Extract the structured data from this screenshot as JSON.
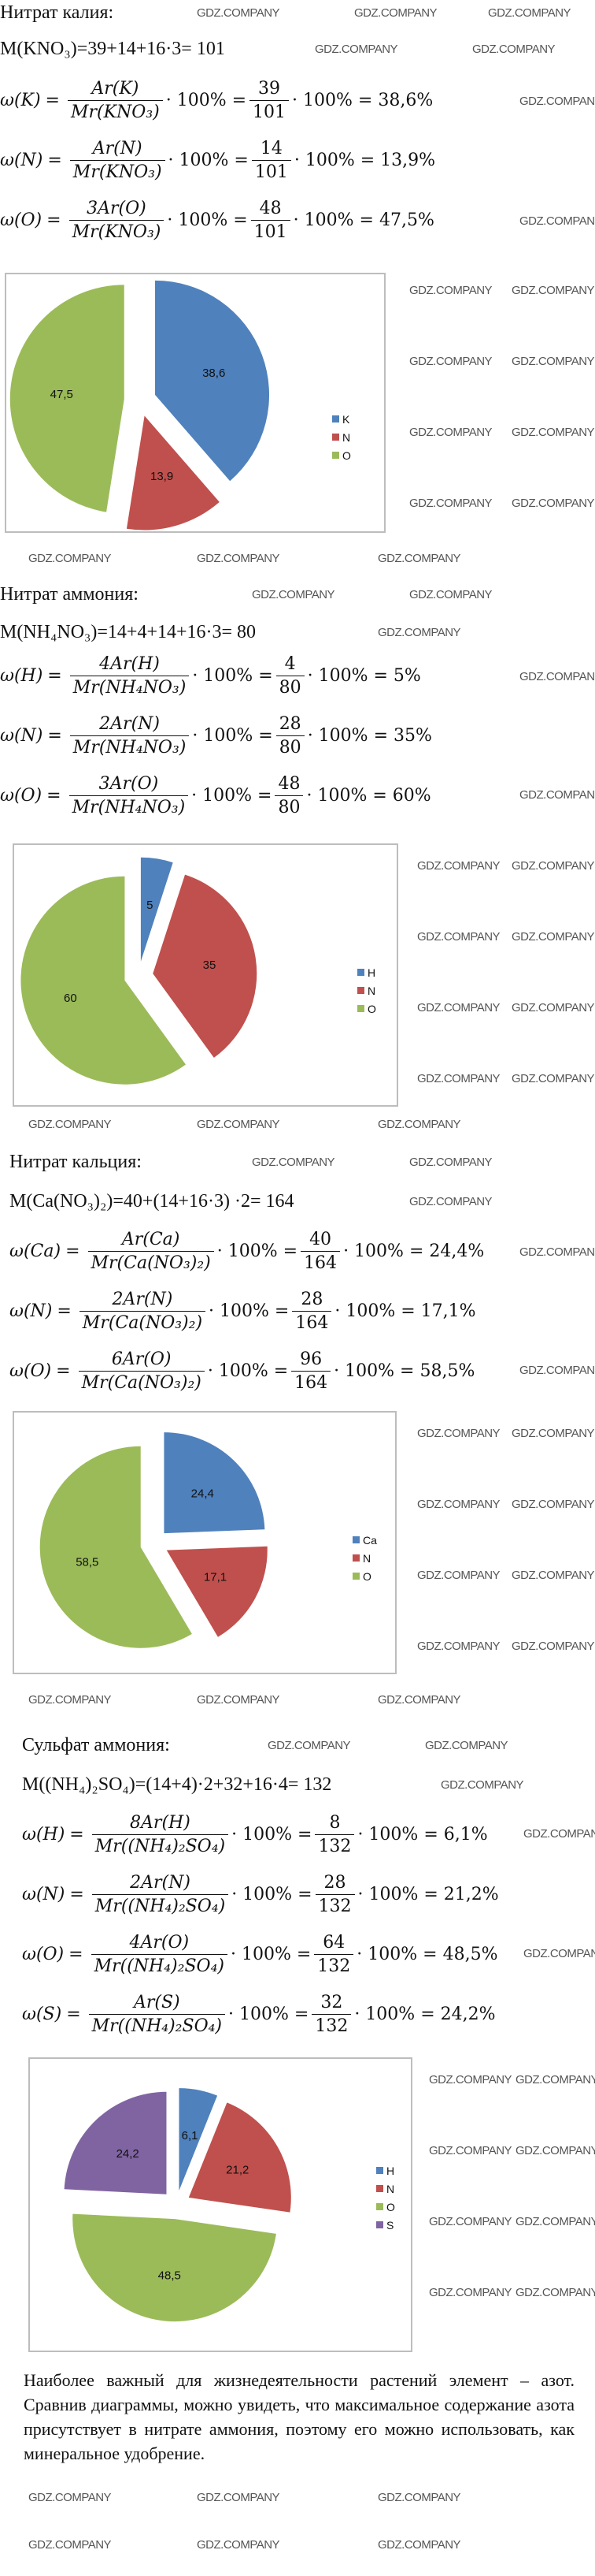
{
  "watermark": "GDZ.COMPANY",
  "colors": {
    "blue": "#4F81BD",
    "red": "#C0504D",
    "green": "#9BBB59",
    "purple": "#8064A2"
  },
  "sections": [
    {
      "title": "Нитрат  калия:",
      "molar": "M(KNO₃)=39+14+16·3= 101",
      "formulas": [
        {
          "lhs": "ω(K)",
          "num": "Ar(K)",
          "den": "Mr(KNO₃)",
          "mid": "· 100% =",
          "num2": "39",
          "den2": "101",
          "result": "· 100% = 38,6%"
        },
        {
          "lhs": "ω(N)",
          "num": "Ar(N)",
          "den": "Mr(KNO₃)",
          "mid": "· 100% =",
          "num2": "14",
          "den2": "101",
          "result": "· 100% = 13,9%"
        },
        {
          "lhs": "ω(O)",
          "num": "3Ar(O)",
          "den": "Mr(KNO₃)",
          "mid": "· 100% =",
          "num2": "48",
          "den2": "101",
          "result": "· 100% = 47,5%"
        }
      ]
    },
    {
      "title": "Нитрат  аммония:",
      "molar": "M(NH₄NO₃)=14+4+14+16·3= 80",
      "formulas": [
        {
          "lhs": "ω(H)",
          "num": "4Ar(H)",
          "den": "Mr(NH₄NO₃)",
          "mid": "· 100% =",
          "num2": "4",
          "den2": "80",
          "result": "· 100% = 5%"
        },
        {
          "lhs": "ω(N)",
          "num": "2Ar(N)",
          "den": "Mr(NH₄NO₃)",
          "mid": "· 100% =",
          "num2": "28",
          "den2": "80",
          "result": "· 100% = 35%"
        },
        {
          "lhs": "ω(O)",
          "num": "3Ar(O)",
          "den": "Mr(NH₄NO₃)",
          "mid": "· 100% =",
          "num2": "48",
          "den2": "80",
          "result": "· 100% = 60%"
        }
      ]
    },
    {
      "title": "Нитрат  кальция:",
      "molar": "M(Ca(NO₃)₂)=40+(14+16·3) ·2= 164",
      "formulas": [
        {
          "lhs": "ω(Ca)",
          "num": "Ar(Ca)",
          "den": "Mr(Ca(NO₃)₂)",
          "mid": "· 100% =",
          "num2": "40",
          "den2": "164",
          "result": "· 100% = 24,4%"
        },
        {
          "lhs": "ω(N)",
          "num": "2Ar(N)",
          "den": "Mr(Ca(NO₃)₂)",
          "mid": "· 100% =",
          "num2": "28",
          "den2": "164",
          "result": "· 100% = 17,1%"
        },
        {
          "lhs": "ω(O)",
          "num": "6Ar(O)",
          "den": "Mr(Ca(NO₃)₂)",
          "mid": "· 100% =",
          "num2": "96",
          "den2": "164",
          "result": "· 100% = 58,5%"
        }
      ]
    },
    {
      "title": "Сульфат  аммония:",
      "molar": "M((NH₄)₂SO₄)=(14+4)·2+32+16·4= 132",
      "formulas": [
        {
          "lhs": "ω(H)",
          "num": "8Ar(H)",
          "den": "Mr((NH₄)₂SO₄)",
          "mid": "· 100% =",
          "num2": "8",
          "den2": "132",
          "result": "· 100% = 6,1%"
        },
        {
          "lhs": "ω(N)",
          "num": "2Ar(N)",
          "den": "Mr((NH₄)₂SO₄)",
          "mid": "· 100% =",
          "num2": "28",
          "den2": "132",
          "result": "· 100% = 21,2%"
        },
        {
          "lhs": "ω(O)",
          "num": "4Ar(O)",
          "den": "Mr((NH₄)₂SO₄)",
          "mid": "· 100% =",
          "num2": "64",
          "den2": "132",
          "result": "· 100% = 48,5%"
        },
        {
          "lhs": "ω(S)",
          "num": "Ar(S)",
          "den": "Mr((NH₄)₂SO₄)",
          "mid": "· 100% =",
          "num2": "32",
          "den2": "132",
          "result": "· 100% = 24,2%"
        }
      ]
    }
  ],
  "chart_data": [
    {
      "type": "pie",
      "title": "",
      "categories": [
        "K",
        "N",
        "O"
      ],
      "values": [
        38.6,
        13.9,
        47.5
      ],
      "labels": [
        "38,6",
        "13,9",
        "47,5"
      ],
      "colors": [
        "#4F81BD",
        "#C0504D",
        "#9BBB59"
      ],
      "legend": "right",
      "exploded": true
    },
    {
      "type": "pie",
      "title": "",
      "categories": [
        "H",
        "N",
        "O"
      ],
      "values": [
        5,
        35,
        60
      ],
      "labels": [
        "5",
        "35",
        "60"
      ],
      "colors": [
        "#4F81BD",
        "#C0504D",
        "#9BBB59"
      ],
      "legend": "right",
      "exploded": true
    },
    {
      "type": "pie",
      "title": "",
      "categories": [
        "Ca",
        "N",
        "O"
      ],
      "values": [
        24.4,
        17.1,
        58.5
      ],
      "labels": [
        "24,4",
        "17,1",
        "58,5"
      ],
      "colors": [
        "#4F81BD",
        "#C0504D",
        "#9BBB59"
      ],
      "legend": "right",
      "exploded": true
    },
    {
      "type": "pie",
      "title": "",
      "categories": [
        "H",
        "N",
        "O",
        "S"
      ],
      "values": [
        6.1,
        21.2,
        48.5,
        24.2
      ],
      "labels": [
        "6,1",
        "21,2",
        "48,5",
        "24,2"
      ],
      "colors": [
        "#4F81BD",
        "#C0504D",
        "#9BBB59",
        "#8064A2"
      ],
      "legend": "right",
      "exploded": true
    }
  ],
  "conclusion": "Наиболее важный для жизнедеятельности растений элемент – азот. Сравнив диаграммы, можно увидеть, что максимальное содержание азота присутствует в нитрате аммония, поэтому его можно использовать, как минеральное удобрение."
}
